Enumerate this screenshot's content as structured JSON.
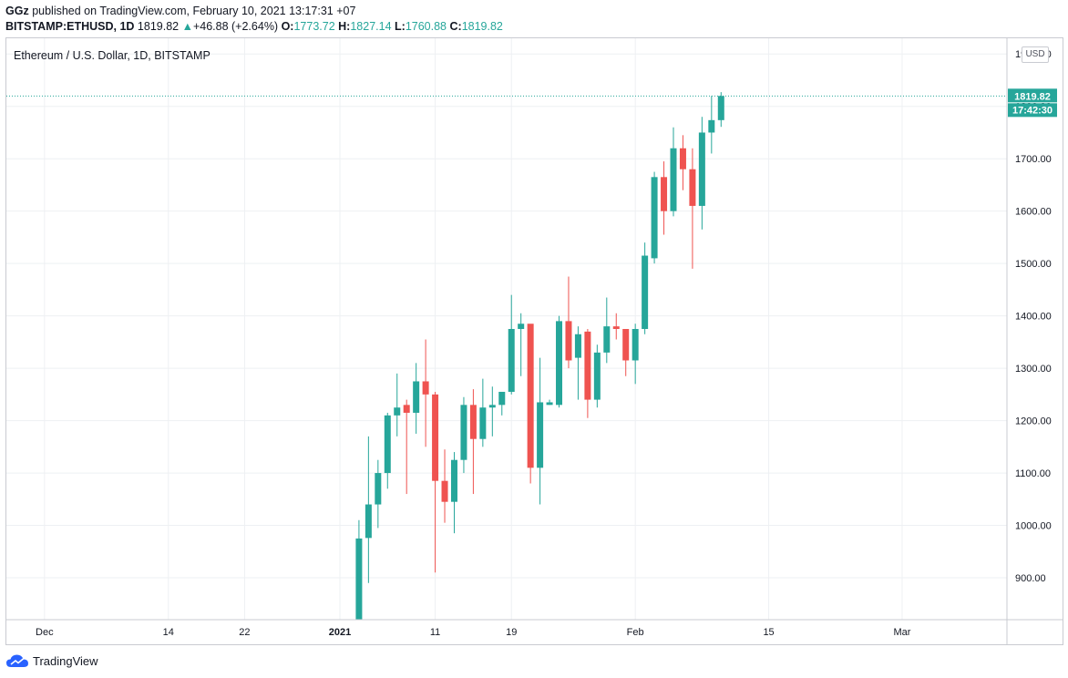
{
  "header": {
    "user": "GGz",
    "published_text": "published on TradingView.com, February 10, 2021 13:17:31 +07",
    "symbol": "BITSTAMP:ETHUSD, 1D",
    "last": "1819.82",
    "change": "+46.88 (+2.64%)",
    "o_label": "O:",
    "o_value": "1773.72",
    "h_label": "H:",
    "h_value": "1827.14",
    "l_label": "L:",
    "l_value": "1760.88",
    "c_label": "C:",
    "c_value": "1819.82"
  },
  "chart_title": "Ethereum / U.S. Dollar, 1D, BITSTAMP",
  "currency_button": "USD",
  "price_label": "1819.82",
  "countdown_label": "17:42:30",
  "footer": {
    "brand": "TradingView"
  },
  "colors": {
    "up": "#26a69a",
    "down": "#ef5350",
    "grid": "#eef0f3",
    "text": "#131722"
  },
  "chart_data": {
    "type": "candlestick",
    "y_ticks": [
      "900.00",
      "1000.00",
      "1100.00",
      "1200.00",
      "1300.00",
      "1400.00",
      "1500.00",
      "1600.00",
      "1700.00",
      "1800.00",
      "1900.00"
    ],
    "x_ticks": [
      {
        "label": "Dec",
        "date": "2020-12-01"
      },
      {
        "label": "14",
        "date": "2020-12-14"
      },
      {
        "label": "22",
        "date": "2020-12-22"
      },
      {
        "label": "2021",
        "date": "2021-01-01"
      },
      {
        "label": "11",
        "date": "2021-01-11"
      },
      {
        "label": "19",
        "date": "2021-01-19"
      },
      {
        "label": "Feb",
        "date": "2021-02-01"
      },
      {
        "label": "15",
        "date": "2021-02-15"
      },
      {
        "label": "Mar",
        "date": "2021-03-01"
      }
    ],
    "ylim": [
      820,
      1930
    ],
    "xlim": [
      "2020-11-27",
      "2021-03-12"
    ],
    "last_price": 1819.82,
    "candles": [
      {
        "date": "2021-01-03",
        "open": 765,
        "high": 1010,
        "low": 720,
        "close": 975
      },
      {
        "date": "2021-01-04",
        "open": 976,
        "high": 1170,
        "low": 890,
        "close": 1040
      },
      {
        "date": "2021-01-05",
        "open": 1040,
        "high": 1125,
        "low": 995,
        "close": 1100
      },
      {
        "date": "2021-01-06",
        "open": 1100,
        "high": 1215,
        "low": 1070,
        "close": 1210
      },
      {
        "date": "2021-01-07",
        "open": 1210,
        "high": 1290,
        "low": 1170,
        "close": 1225
      },
      {
        "date": "2021-01-08",
        "open": 1230,
        "high": 1240,
        "low": 1060,
        "close": 1215
      },
      {
        "date": "2021-01-09",
        "open": 1215,
        "high": 1310,
        "low": 1175,
        "close": 1275
      },
      {
        "date": "2021-01-10",
        "open": 1275,
        "high": 1355,
        "low": 1150,
        "close": 1250
      },
      {
        "date": "2021-01-11",
        "open": 1250,
        "high": 1255,
        "low": 910,
        "close": 1085
      },
      {
        "date": "2021-01-12",
        "open": 1085,
        "high": 1145,
        "low": 1005,
        "close": 1045
      },
      {
        "date": "2021-01-13",
        "open": 1045,
        "high": 1140,
        "low": 985,
        "close": 1125
      },
      {
        "date": "2021-01-14",
        "open": 1125,
        "high": 1245,
        "low": 1100,
        "close": 1230
      },
      {
        "date": "2021-01-15",
        "open": 1230,
        "high": 1260,
        "low": 1060,
        "close": 1165
      },
      {
        "date": "2021-01-16",
        "open": 1165,
        "high": 1280,
        "low": 1150,
        "close": 1225
      },
      {
        "date": "2021-01-17",
        "open": 1225,
        "high": 1265,
        "low": 1170,
        "close": 1230
      },
      {
        "date": "2021-01-18",
        "open": 1230,
        "high": 1255,
        "low": 1210,
        "close": 1255
      },
      {
        "date": "2021-01-19",
        "open": 1255,
        "high": 1440,
        "low": 1250,
        "close": 1375
      },
      {
        "date": "2021-01-20",
        "open": 1375,
        "high": 1405,
        "low": 1285,
        "close": 1385
      },
      {
        "date": "2021-01-21",
        "open": 1385,
        "high": 1380,
        "low": 1080,
        "close": 1110
      },
      {
        "date": "2021-01-22",
        "open": 1110,
        "high": 1320,
        "low": 1040,
        "close": 1235
      },
      {
        "date": "2021-01-23",
        "open": 1230,
        "high": 1240,
        "low": 1230,
        "close": 1235
      },
      {
        "date": "2021-01-24",
        "open": 1230,
        "high": 1400,
        "low": 1225,
        "close": 1390
      },
      {
        "date": "2021-01-25",
        "open": 1390,
        "high": 1475,
        "low": 1300,
        "close": 1315
      },
      {
        "date": "2021-01-26",
        "open": 1320,
        "high": 1380,
        "low": 1240,
        "close": 1365
      },
      {
        "date": "2021-01-27",
        "open": 1370,
        "high": 1375,
        "low": 1205,
        "close": 1240
      },
      {
        "date": "2021-01-28",
        "open": 1240,
        "high": 1345,
        "low": 1225,
        "close": 1330
      },
      {
        "date": "2021-01-29",
        "open": 1330,
        "high": 1435,
        "low": 1310,
        "close": 1380
      },
      {
        "date": "2021-01-30",
        "open": 1380,
        "high": 1405,
        "low": 1355,
        "close": 1375
      },
      {
        "date": "2021-01-31",
        "open": 1375,
        "high": 1375,
        "low": 1285,
        "close": 1315
      },
      {
        "date": "2021-02-01",
        "open": 1315,
        "high": 1385,
        "low": 1270,
        "close": 1375
      },
      {
        "date": "2021-02-02",
        "open": 1375,
        "high": 1540,
        "low": 1365,
        "close": 1515
      },
      {
        "date": "2021-02-03",
        "open": 1510,
        "high": 1675,
        "low": 1500,
        "close": 1665
      },
      {
        "date": "2021-02-04",
        "open": 1665,
        "high": 1695,
        "low": 1555,
        "close": 1600
      },
      {
        "date": "2021-02-05",
        "open": 1600,
        "high": 1760,
        "low": 1590,
        "close": 1720
      },
      {
        "date": "2021-02-06",
        "open": 1720,
        "high": 1745,
        "low": 1640,
        "close": 1680
      },
      {
        "date": "2021-02-07",
        "open": 1680,
        "high": 1720,
        "low": 1490,
        "close": 1610
      },
      {
        "date": "2021-02-08",
        "open": 1610,
        "high": 1780,
        "low": 1565,
        "close": 1750
      },
      {
        "date": "2021-02-09",
        "open": 1750,
        "high": 1820,
        "low": 1710,
        "close": 1773.72
      },
      {
        "date": "2021-02-10",
        "open": 1773.72,
        "high": 1827.14,
        "low": 1760.88,
        "close": 1819.82
      }
    ]
  }
}
